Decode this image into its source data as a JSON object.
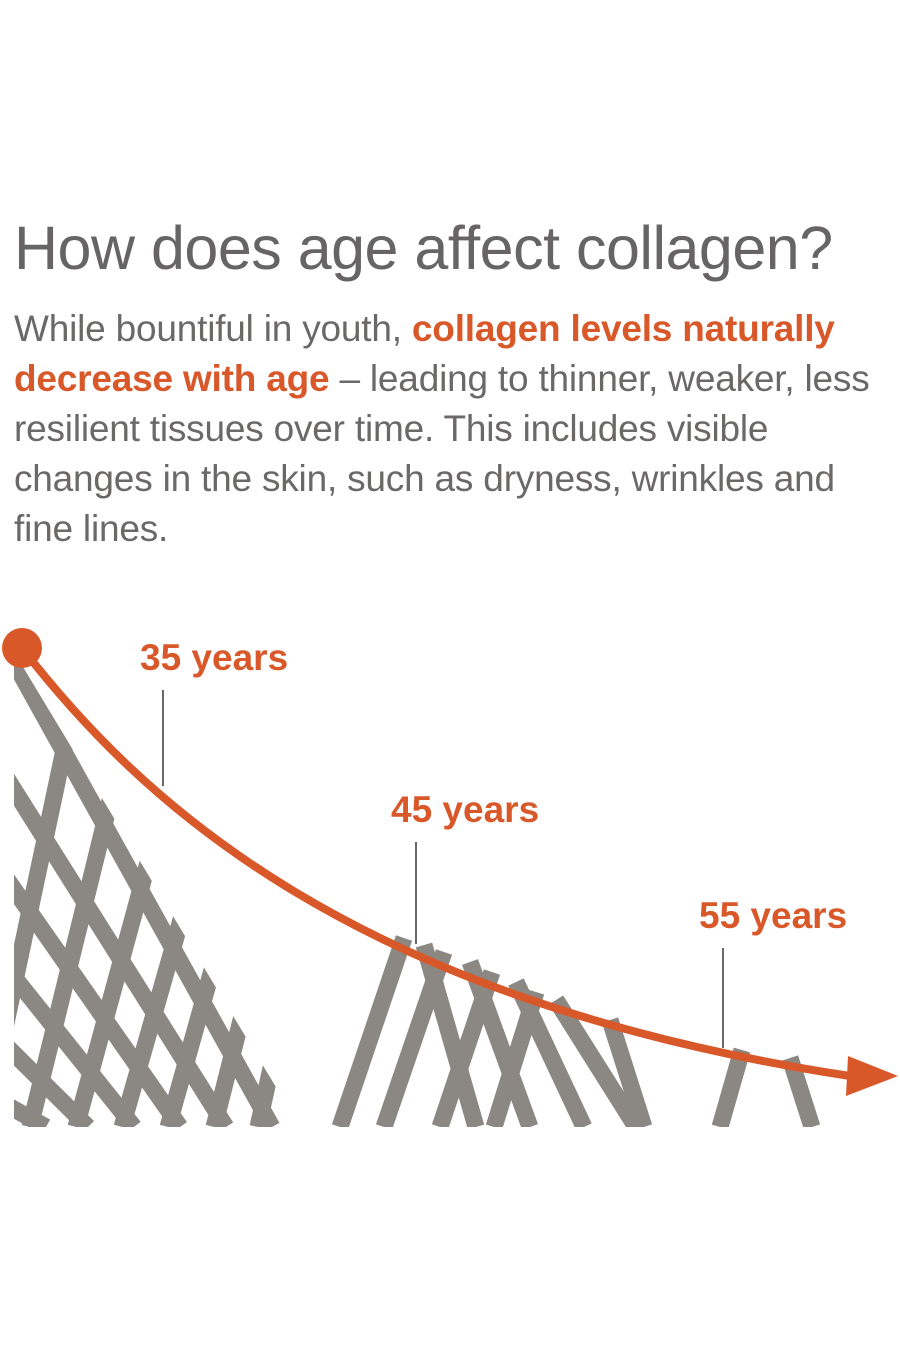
{
  "heading": "How does age affect collagen?",
  "intro": {
    "lead": "While bountiful in youth, ",
    "highlight": "collagen levels naturally decrease with age",
    "rest": " – leading to thinner, weaker, less resilient tissues over time. This includes visible changes in the skin, such as dryness, wrinkles and fine lines."
  },
  "milestones": [
    {
      "label": "35 years"
    },
    {
      "label": "45 years"
    },
    {
      "label": "55 years"
    }
  ],
  "colors": {
    "accent": "#d9582a",
    "fiber": "#8b8782",
    "heading": "#666464",
    "text": "#6b6868"
  }
}
